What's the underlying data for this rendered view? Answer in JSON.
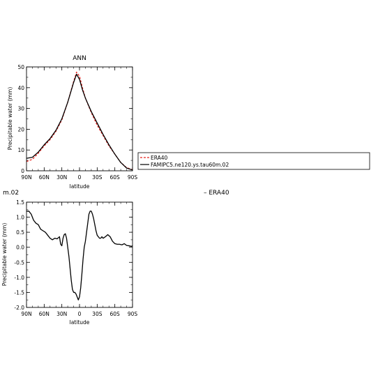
{
  "chart_data": [
    {
      "type": "line",
      "title": "ANN",
      "xlabel": "latitude",
      "ylabel": "Precipitable water (mm)",
      "xlim": [
        -90,
        90
      ],
      "ylim": [
        0,
        50
      ],
      "x_ticks": [
        {
          "value": -90,
          "label": "90N"
        },
        {
          "value": -60,
          "label": "60N"
        },
        {
          "value": -30,
          "label": "30N"
        },
        {
          "value": 0,
          "label": "0"
        },
        {
          "value": 30,
          "label": "30S"
        },
        {
          "value": 60,
          "label": "60S"
        },
        {
          "value": 90,
          "label": "90S"
        }
      ],
      "y_ticks": [
        {
          "value": 0,
          "label": "0"
        },
        {
          "value": 10,
          "label": "10"
        },
        {
          "value": 20,
          "label": "20"
        },
        {
          "value": 30,
          "label": "30"
        },
        {
          "value": 40,
          "label": "40"
        },
        {
          "value": 50,
          "label": "50"
        }
      ],
      "x": [
        -90,
        -80,
        -70,
        -60,
        -50,
        -40,
        -30,
        -20,
        -10,
        -5,
        0,
        5,
        10,
        20,
        30,
        40,
        50,
        60,
        70,
        80,
        90
      ],
      "series": [
        {
          "name": "ERA40",
          "color": "#e8211c",
          "dash": "dashed",
          "values": [
            4.5,
            5.5,
            8.5,
            12,
            15,
            19,
            24.5,
            33,
            43,
            47.5,
            45.5,
            40,
            35,
            28,
            22,
            17,
            12,
            8,
            4,
            1.5,
            0.5
          ]
        },
        {
          "name": "FAMIPC5.ne120.ys.tau60m.02",
          "color": "#000000",
          "dash": "solid",
          "values": [
            6,
            6.5,
            9,
            12.5,
            15.5,
            19.5,
            25,
            33,
            42.5,
            46.5,
            44,
            39,
            35,
            28.5,
            23,
            17.5,
            12.5,
            8,
            4,
            1.3,
            0.4
          ]
        }
      ],
      "legend": {
        "placement": "right",
        "entries": [
          {
            "label": "ERA40",
            "color": "#e8211c",
            "dash": "dashed"
          },
          {
            "label": "FAMIPC5.ne120.ys.tau60m.02",
            "color": "#000000",
            "dash": "solid"
          }
        ]
      }
    },
    {
      "type": "line",
      "title": "m.02",
      "title_right": "– ERA40",
      "xlabel": "latitude",
      "ylabel": "Precipitable water (mm)",
      "xlim": [
        -90,
        90
      ],
      "ylim": [
        -2.0,
        1.5
      ],
      "x_ticks": [
        {
          "value": -90,
          "label": "90N"
        },
        {
          "value": -60,
          "label": "60N"
        },
        {
          "value": -30,
          "label": "30N"
        },
        {
          "value": 0,
          "label": "0"
        },
        {
          "value": 30,
          "label": "30S"
        },
        {
          "value": 60,
          "label": "60S"
        },
        {
          "value": 90,
          "label": "90S"
        }
      ],
      "y_ticks": [
        {
          "value": -2.0,
          "label": "-2.0"
        },
        {
          "value": -1.5,
          "label": "-1.5"
        },
        {
          "value": -1.0,
          "label": "-1.0"
        },
        {
          "value": -0.5,
          "label": "-0.5"
        },
        {
          "value": 0.0,
          "label": "0.0"
        },
        {
          "value": 0.5,
          "label": "0.5"
        },
        {
          "value": 1.0,
          "label": "1.0"
        },
        {
          "value": 1.5,
          "label": "1.5"
        }
      ],
      "x": [
        -90,
        -86,
        -82,
        -78,
        -74,
        -70,
        -66,
        -62,
        -58,
        -54,
        -50,
        -46,
        -42,
        -38,
        -34,
        -32,
        -30,
        -28,
        -26,
        -24,
        -22,
        -20,
        -18,
        -16,
        -14,
        -12,
        -10,
        -8,
        -6,
        -4,
        -2,
        0,
        2,
        4,
        6,
        8,
        10,
        12,
        14,
        16,
        18,
        20,
        22,
        24,
        26,
        28,
        30,
        32,
        34,
        36,
        38,
        40,
        44,
        48,
        52,
        56,
        60,
        64,
        68,
        72,
        76,
        80,
        84,
        88,
        90
      ],
      "series": [
        {
          "name": "",
          "color": "#000000",
          "dash": "solid",
          "values": [
            1.2,
            1.2,
            1.1,
            0.9,
            0.8,
            0.75,
            0.6,
            0.55,
            0.5,
            0.4,
            0.3,
            0.25,
            0.3,
            0.28,
            0.35,
            0.1,
            0.05,
            0.3,
            0.42,
            0.45,
            0.3,
            0.0,
            -0.3,
            -0.7,
            -1.1,
            -1.4,
            -1.5,
            -1.5,
            -1.55,
            -1.65,
            -1.75,
            -1.65,
            -1.35,
            -0.9,
            -0.4,
            0.0,
            0.2,
            0.5,
            0.8,
            1.1,
            1.2,
            1.2,
            1.1,
            0.95,
            0.75,
            0.55,
            0.4,
            0.35,
            0.3,
            0.3,
            0.35,
            0.3,
            0.35,
            0.42,
            0.35,
            0.2,
            0.12,
            0.1,
            0.1,
            0.08,
            0.12,
            0.06,
            0.05,
            0.03,
            0.05
          ]
        }
      ]
    }
  ]
}
